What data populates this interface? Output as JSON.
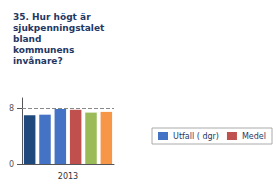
{
  "chart_data": {
    "type": "bar",
    "title": "35. Hur högt är\nsjukpenningstalet\nbland\nkommunens\ninvånare?",
    "xlabel": "2013",
    "categories": [
      null,
      null,
      null,
      null,
      null,
      null
    ],
    "values": [
      7.0,
      7.1,
      7.9,
      7.8,
      7.4,
      7.5
    ],
    "colors": [
      "#1F497D",
      "#4472C4",
      "#4472C4",
      "#C0504D",
      "#9BBB59",
      "#F79646"
    ],
    "ylim": [
      0,
      9.5
    ],
    "yticks": [
      0,
      8
    ],
    "hline": 8.0,
    "grid": false,
    "legend": "right",
    "legend_labels": [
      "Utfall ( dgr)",
      "Medel"
    ],
    "legend_colors": [
      "#4472C4",
      "#C0504D"
    ]
  }
}
